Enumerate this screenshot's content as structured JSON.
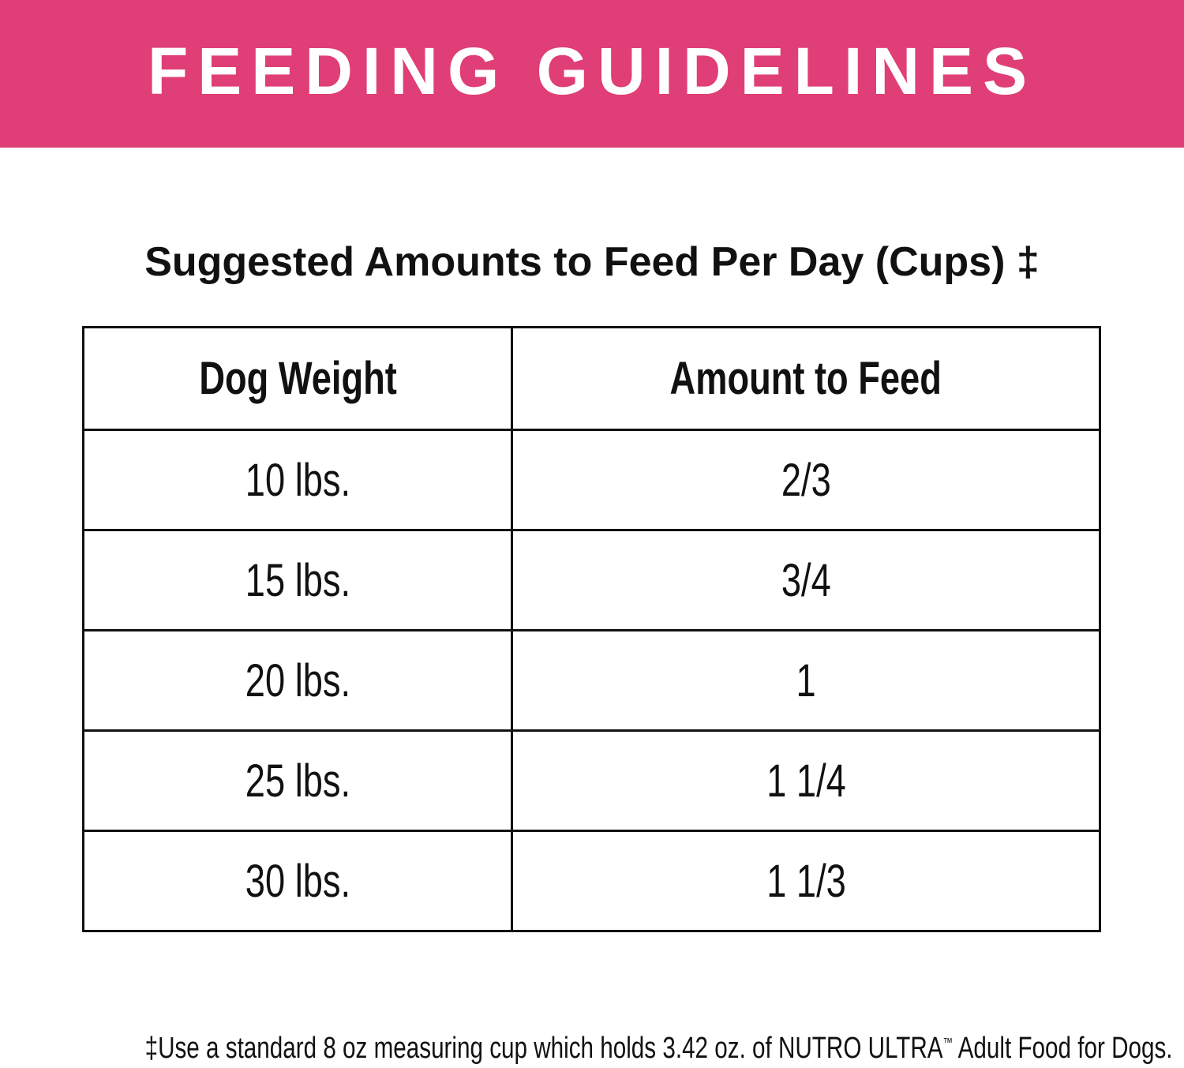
{
  "header": {
    "title": "FEEDING GUIDELINES"
  },
  "subtitle": "Suggested Amounts to Feed Per Day (Cups) ‡",
  "table": {
    "columns": [
      "Dog Weight",
      "Amount to Feed"
    ],
    "rows": [
      [
        "10 lbs.",
        "2/3"
      ],
      [
        "15 lbs.",
        "3/4"
      ],
      [
        "20 lbs.",
        "1"
      ],
      [
        "25 lbs.",
        "1 1/4"
      ],
      [
        "30 lbs.",
        "1 1/3"
      ]
    ]
  },
  "footnote": {
    "text": "‡Use a standard 8 oz measuring cup which holds 3.42 oz. of NUTRO ULTRA",
    "mark": "™",
    "rest": " Adult Food for Dogs."
  }
}
